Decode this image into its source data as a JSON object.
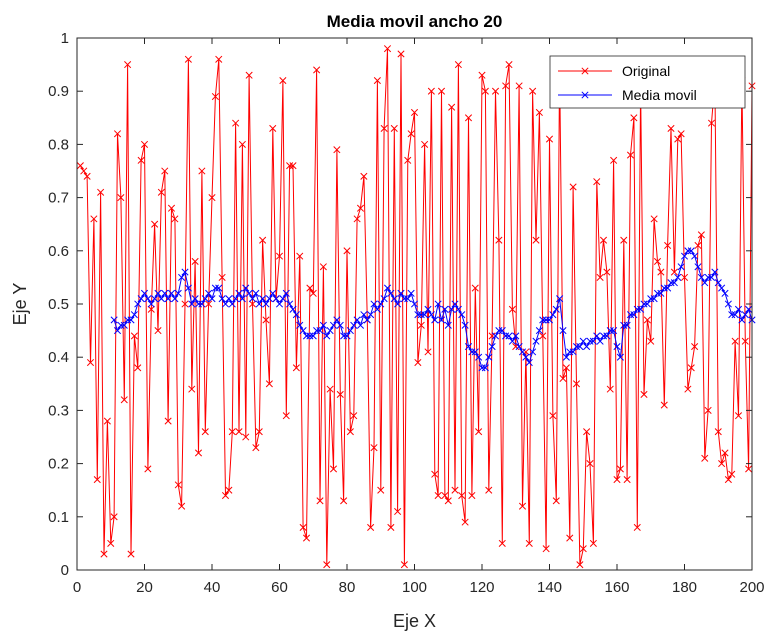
{
  "chart_data": {
    "type": "line",
    "title": "Media movil ancho 20",
    "xlabel": "Eje X",
    "ylabel": "Eje Y",
    "xlim": [
      0,
      200
    ],
    "ylim": [
      0,
      1
    ],
    "xticks": [
      0,
      20,
      40,
      60,
      80,
      100,
      120,
      140,
      160,
      180,
      200
    ],
    "yticks": [
      0,
      0.1,
      0.2,
      0.3,
      0.4,
      0.5,
      0.6,
      0.7,
      0.8,
      0.9,
      1
    ],
    "grid": false,
    "legend_position": "top-right",
    "colors": {
      "original": "#ff0000",
      "media": "#0000ff",
      "axis": "#262626"
    },
    "series": [
      {
        "name": "Original",
        "marker": "x",
        "x_start": 1,
        "values": [
          0.76,
          0.75,
          0.74,
          0.39,
          0.66,
          0.17,
          0.71,
          0.03,
          0.28,
          0.05,
          0.1,
          0.82,
          0.7,
          0.32,
          0.95,
          0.03,
          0.44,
          0.38,
          0.77,
          0.8,
          0.19,
          0.49,
          0.65,
          0.45,
          0.71,
          0.75,
          0.28,
          0.68,
          0.66,
          0.16,
          0.12,
          0.5,
          0.96,
          0.34,
          0.58,
          0.22,
          0.75,
          0.26,
          0.5,
          0.7,
          0.89,
          0.96,
          0.55,
          0.14,
          0.15,
          0.26,
          0.84,
          0.26,
          0.8,
          0.25,
          0.93,
          0.5,
          0.23,
          0.26,
          0.62,
          0.47,
          0.35,
          0.83,
          0.51,
          0.59,
          0.92,
          0.29,
          0.76,
          0.76,
          0.38,
          0.59,
          0.08,
          0.06,
          0.53,
          0.52,
          0.94,
          0.13,
          0.57,
          0.01,
          0.34,
          0.19,
          0.79,
          0.33,
          0.13,
          0.6,
          0.26,
          0.29,
          0.66,
          0.68,
          0.74,
          0.47,
          0.08,
          0.23,
          0.92,
          0.15,
          0.83,
          0.98,
          0.08,
          0.83,
          0.11,
          0.97,
          0.01,
          0.77,
          0.82,
          0.86,
          0.39,
          0.46,
          0.8,
          0.41,
          0.9,
          0.18,
          0.14,
          0.9,
          0.14,
          0.13,
          0.87,
          0.15,
          0.95,
          0.14,
          0.09,
          0.85,
          0.14,
          0.53,
          0.26,
          0.93,
          0.9,
          0.15,
          0.44,
          0.9,
          0.62,
          0.05,
          0.91,
          0.95,
          0.49,
          0.42,
          0.91,
          0.12,
          0.41,
          0.05,
          0.9,
          0.62,
          0.86,
          0.44,
          0.04,
          0.81,
          0.29,
          0.13,
          0.95,
          0.36,
          0.38,
          0.06,
          0.72,
          0.35,
          0.01,
          0.04,
          0.26,
          0.2,
          0.05,
          0.73,
          0.55,
          0.62,
          0.56,
          0.34,
          0.77,
          0.17,
          0.19,
          0.62,
          0.17,
          0.78,
          0.85,
          0.08,
          0.91,
          0.33,
          0.47,
          0.43,
          0.66,
          0.58,
          0.56,
          0.31,
          0.61,
          0.83,
          0.56,
          0.81,
          0.82,
          0.55,
          0.34,
          0.38,
          0.42,
          0.61,
          0.63,
          0.21,
          0.3,
          0.84,
          0.92,
          0.26,
          0.2,
          0.22,
          0.17,
          0.18,
          0.43,
          0.29,
          0.92,
          0.43,
          0.19,
          0.91
        ]
      },
      {
        "name": "Media movil",
        "marker": "x",
        "x_start": 11,
        "values": [
          0.47,
          0.45,
          0.46,
          0.46,
          0.47,
          0.47,
          0.48,
          0.5,
          0.51,
          0.52,
          0.51,
          0.5,
          0.51,
          0.52,
          0.51,
          0.52,
          0.51,
          0.52,
          0.51,
          0.52,
          0.55,
          0.56,
          0.53,
          0.5,
          0.51,
          0.5,
          0.5,
          0.51,
          0.52,
          0.51,
          0.53,
          0.53,
          0.51,
          0.5,
          0.51,
          0.5,
          0.51,
          0.52,
          0.51,
          0.53,
          0.52,
          0.51,
          0.52,
          0.5,
          0.51,
          0.5,
          0.51,
          0.52,
          0.51,
          0.5,
          0.51,
          0.52,
          0.5,
          0.49,
          0.48,
          0.46,
          0.45,
          0.44,
          0.44,
          0.44,
          0.45,
          0.45,
          0.46,
          0.44,
          0.45,
          0.46,
          0.47,
          0.46,
          0.44,
          0.44,
          0.45,
          0.46,
          0.47,
          0.46,
          0.48,
          0.47,
          0.48,
          0.5,
          0.49,
          0.5,
          0.51,
          0.53,
          0.52,
          0.51,
          0.5,
          0.52,
          0.51,
          0.51,
          0.52,
          0.5,
          0.48,
          0.48,
          0.48,
          0.49,
          0.48,
          0.47,
          0.5,
          0.47,
          0.49,
          0.46,
          0.49,
          0.5,
          0.49,
          0.48,
          0.46,
          0.42,
          0.41,
          0.41,
          0.4,
          0.38,
          0.38,
          0.4,
          0.42,
          0.44,
          0.45,
          0.45,
          0.44,
          0.44,
          0.43,
          0.44,
          0.42,
          0.41,
          0.4,
          0.39,
          0.41,
          0.43,
          0.45,
          0.47,
          0.47,
          0.47,
          0.48,
          0.49,
          0.51,
          0.45,
          0.4,
          0.41,
          0.41,
          0.42,
          0.42,
          0.43,
          0.42,
          0.43,
          0.43,
          0.44,
          0.43,
          0.44,
          0.44,
          0.45,
          0.45,
          0.42,
          0.4,
          0.46,
          0.46,
          0.48,
          0.48,
          0.49,
          0.49,
          0.5,
          0.5,
          0.51,
          0.51,
          0.52,
          0.52,
          0.53,
          0.53,
          0.54,
          0.54,
          0.55,
          0.57,
          0.59,
          0.6,
          0.6,
          0.59,
          0.57,
          0.55,
          0.54,
          0.55,
          0.55,
          0.56,
          0.54,
          0.53,
          0.52,
          0.5,
          0.48,
          0.48,
          0.49,
          0.47,
          0.48,
          0.49,
          0.47
        ]
      }
    ]
  }
}
